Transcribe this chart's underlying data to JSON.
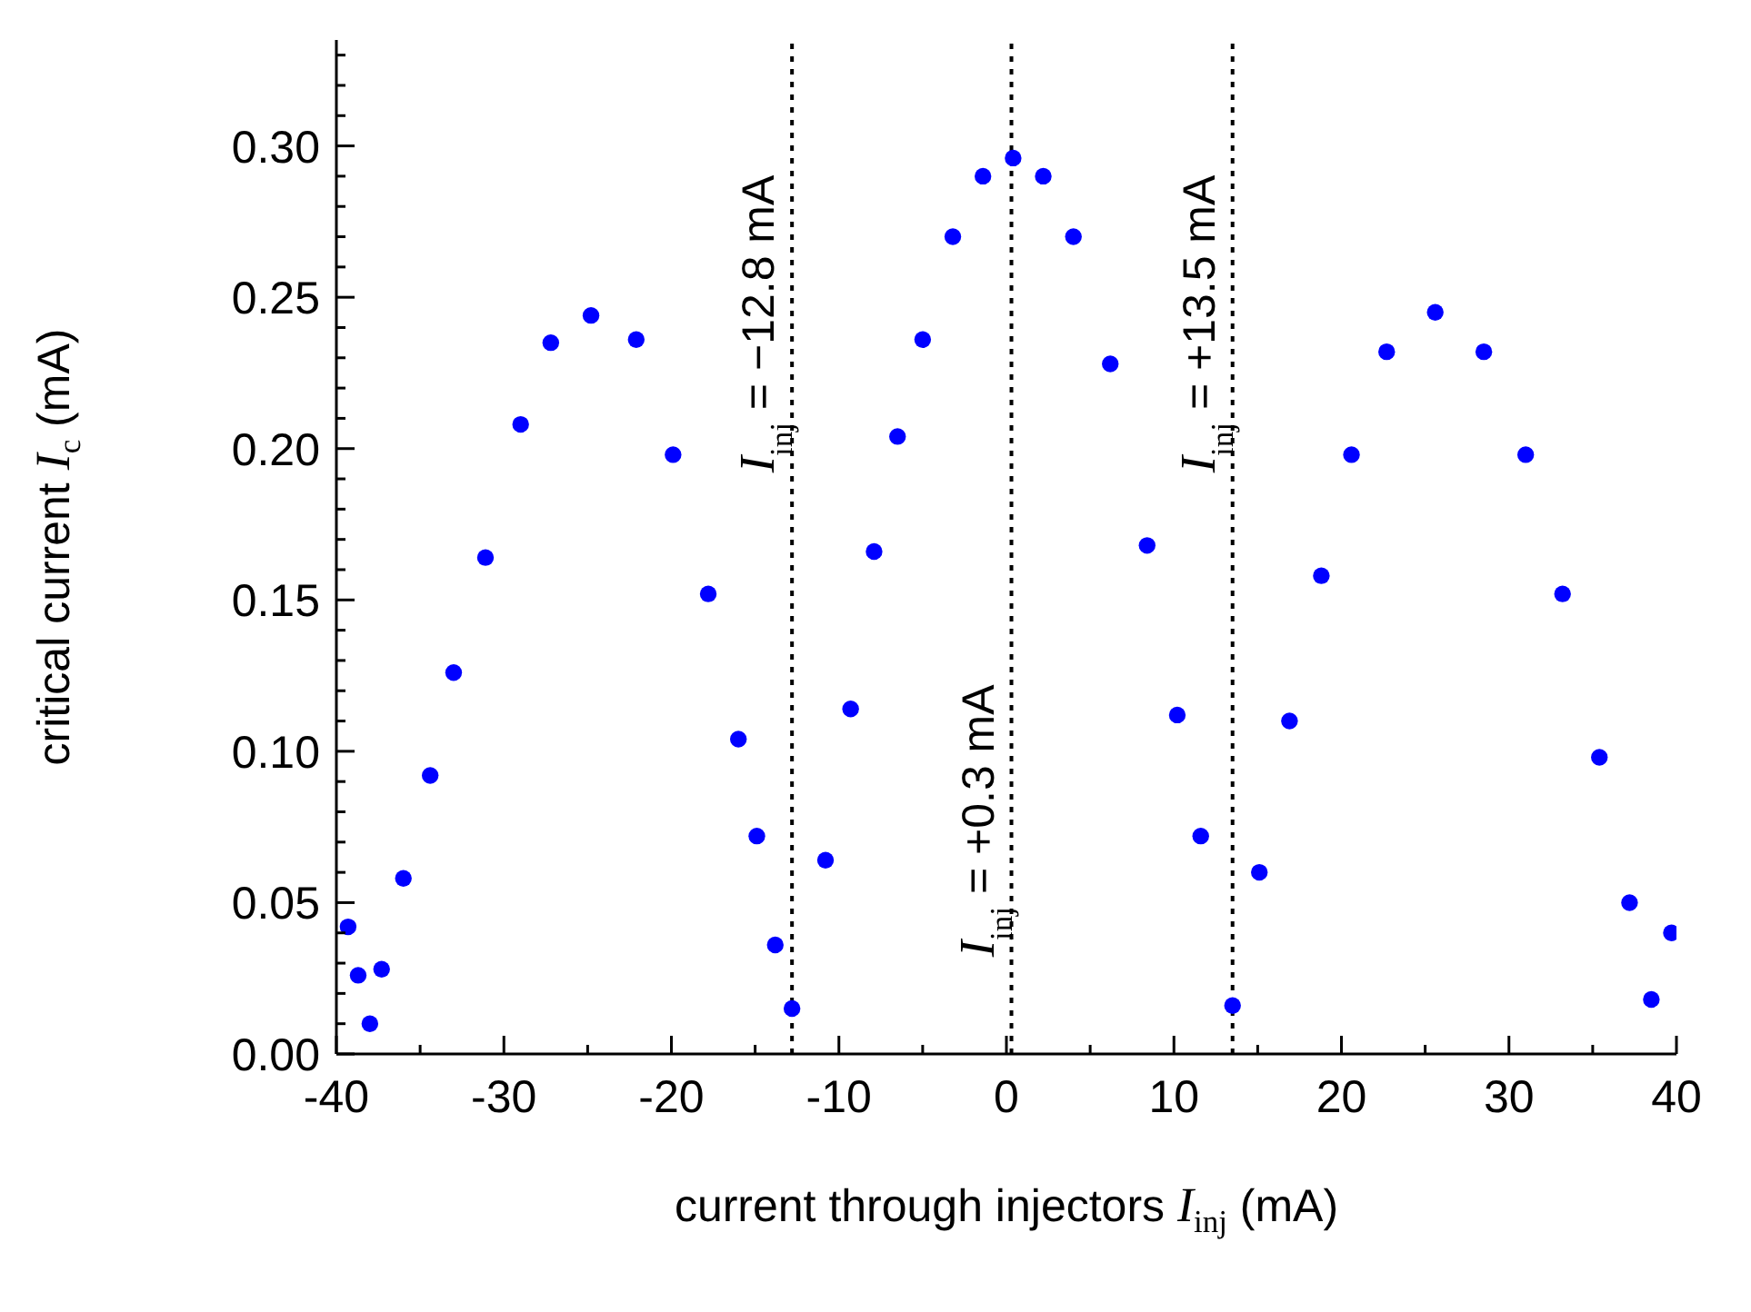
{
  "chart_data": {
    "type": "scatter",
    "xlabel": "current through injectors I$_{inj}$ (mA)",
    "ylabel": "critical current I$_{c}$ (mA)",
    "x": [
      -39.3,
      -38.7,
      -38.0,
      -37.3,
      -36.0,
      -34.4,
      -33.0,
      -31.1,
      -29.0,
      -27.2,
      -24.8,
      -22.1,
      -19.9,
      -17.8,
      -16.0,
      -14.9,
      -13.8,
      -12.8,
      -10.8,
      -9.3,
      -7.9,
      -6.5,
      -5.0,
      -3.2,
      -1.4,
      0.4,
      2.2,
      4.0,
      6.2,
      8.4,
      10.2,
      11.6,
      13.5,
      15.1,
      16.9,
      18.8,
      20.6,
      22.7,
      25.6,
      28.5,
      31.0,
      33.2,
      35.4,
      37.2,
      38.5,
      39.7
    ],
    "series": [
      {
        "color": "#0000ff",
        "values": [
          0.042,
          0.026,
          0.01,
          0.028,
          0.058,
          0.092,
          0.126,
          0.164,
          0.208,
          0.235,
          0.244,
          0.236,
          0.198,
          0.152,
          0.104,
          0.072,
          0.036,
          0.015,
          0.064,
          0.114,
          0.166,
          0.204,
          0.236,
          0.27,
          0.29,
          0.296,
          0.29,
          0.27,
          0.228,
          0.168,
          0.112,
          0.072,
          0.016,
          0.06,
          0.11,
          0.158,
          0.198,
          0.232,
          0.245,
          0.232,
          0.198,
          0.152,
          0.098,
          0.05,
          0.018,
          0.04
        ]
      }
    ],
    "marker": "circle",
    "xlim": [
      -40,
      40
    ],
    "xticks": [
      -40,
      {
        "value": -35,
        "label": null
      },
      -30,
      {
        "value": -25,
        "label": null
      },
      -20,
      {
        "value": -15,
        "label": null
      },
      -10,
      {
        "value": -5,
        "label": null
      },
      0,
      {
        "value": 5,
        "label": null
      },
      10,
      {
        "value": 15,
        "label": null
      },
      20,
      {
        "value": 25,
        "label": null
      },
      30,
      {
        "value": 35,
        "label": null
      },
      40
    ],
    "ylim": [
      0,
      0.335
    ],
    "yticks": [
      {
        "value": 0,
        "label": "0.00"
      },
      {
        "value": 0.01,
        "label": null
      },
      {
        "value": 0.02,
        "label": null
      },
      {
        "value": 0.03,
        "label": null
      },
      {
        "value": 0.04,
        "label": null
      },
      {
        "value": 0.05,
        "label": "0.05"
      },
      {
        "value": 0.06,
        "label": null
      },
      {
        "value": 0.07,
        "label": null
      },
      {
        "value": 0.08,
        "label": null
      },
      {
        "value": 0.09,
        "label": null
      },
      {
        "value": 0.1,
        "label": "0.10"
      },
      {
        "value": 0.11,
        "label": null
      },
      {
        "value": 0.12,
        "label": null
      },
      {
        "value": 0.13,
        "label": null
      },
      {
        "value": 0.14,
        "label": null
      },
      {
        "value": 0.15,
        "label": "0.15"
      },
      {
        "value": 0.16,
        "label": null
      },
      {
        "value": 0.17,
        "label": null
      },
      {
        "value": 0.18,
        "label": null
      },
      {
        "value": 0.19,
        "label": null
      },
      {
        "value": 0.2,
        "label": "0.20"
      },
      {
        "value": 0.21,
        "label": null
      },
      {
        "value": 0.22,
        "label": null
      },
      {
        "value": 0.23,
        "label": null
      },
      {
        "value": 0.24,
        "label": null
      },
      {
        "value": 0.25,
        "label": "0.25"
      },
      {
        "value": 0.26,
        "label": null
      },
      {
        "value": 0.27,
        "label": null
      },
      {
        "value": 0.28,
        "label": null
      },
      {
        "value": 0.29,
        "label": null
      },
      {
        "value": 0.3,
        "label": "0.30"
      },
      {
        "value": 0.31,
        "label": null
      },
      {
        "value": 0.32,
        "label": null
      },
      {
        "value": 0.33,
        "label": null
      }
    ],
    "ref_lines": [
      {
        "axis": "x",
        "value": -12.8,
        "label": "I$_{inj}$ = −12.8 mA",
        "color": "#000000",
        "line_style": "dotted"
      },
      {
        "axis": "x",
        "value": 0.3,
        "label": "I$_{inj}$ = +0.3 mA",
        "color": "#000000",
        "line_style": "dotted"
      },
      {
        "axis": "x",
        "value": 13.5,
        "label": "I$_{inj}$ = +13.5 mA",
        "color": "#000000",
        "line_style": "dotted"
      }
    ]
  }
}
